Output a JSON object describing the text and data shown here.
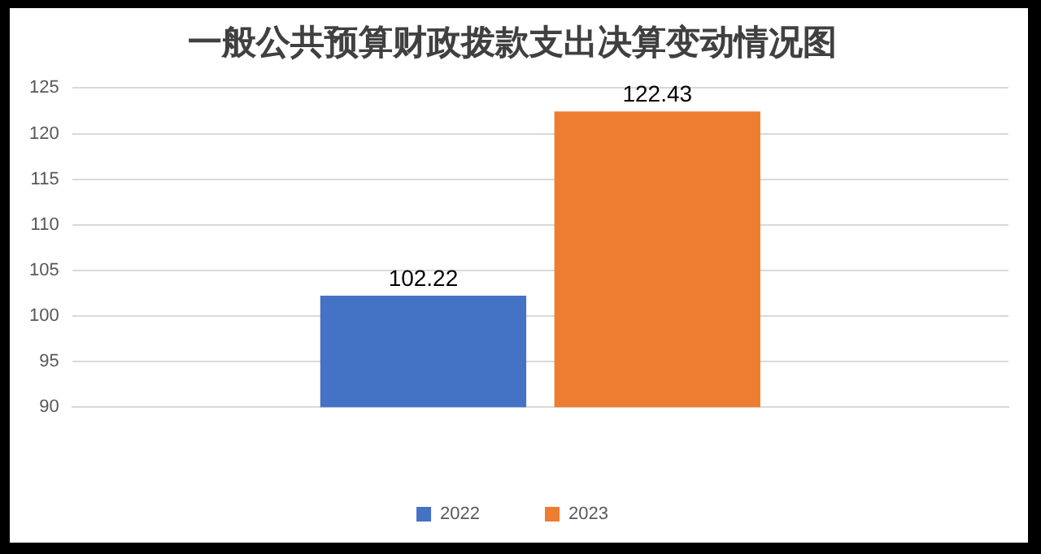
{
  "chart_data": {
    "type": "bar",
    "title": "一般公共预算财政拨款支出决算变动情况图",
    "categories": [
      null
    ],
    "series": [
      {
        "name": "2022",
        "color": "#4472c4",
        "values": [
          102.22
        ]
      },
      {
        "name": "2023",
        "color": "#ed7d31",
        "values": [
          122.43
        ]
      }
    ],
    "ylim": [
      90,
      125
    ],
    "yticks": [
      90,
      95,
      100,
      105,
      110,
      115,
      120,
      125
    ],
    "grid": "y",
    "legend": "bottom",
    "data_labels": true
  }
}
